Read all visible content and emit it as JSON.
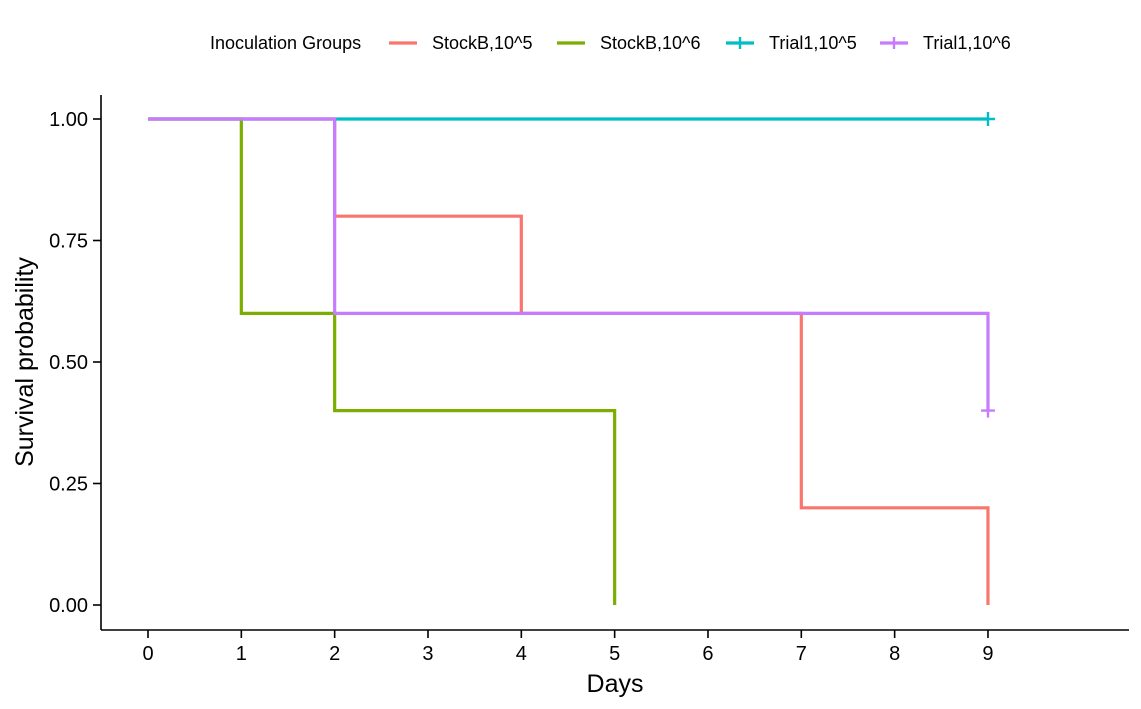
{
  "chart_data": {
    "type": "line",
    "subtype": "kaplan-meier step",
    "title": "",
    "xlabel": "Days",
    "ylabel": "Survival probability",
    "xlim": [
      -0.5,
      10.5
    ],
    "ylim": [
      -0.05,
      1.05
    ],
    "x_ticks": [
      0,
      1,
      2,
      3,
      4,
      5,
      6,
      7,
      8,
      9
    ],
    "y_ticks": [
      0,
      0.25,
      0.5,
      0.75,
      1.0
    ],
    "y_tick_labels": [
      "0.00",
      "0.25",
      "0.50",
      "0.75",
      "1.00"
    ],
    "grid": false,
    "legend": {
      "title": "Inoculation Groups",
      "position": "top"
    },
    "series": [
      {
        "name": "StockB,10^5",
        "color": "#F8766D",
        "steps": [
          [
            0,
            1.0
          ],
          [
            2,
            0.8
          ],
          [
            4,
            0.6
          ],
          [
            7,
            0.2
          ],
          [
            9,
            0.0
          ]
        ],
        "end_x": 9,
        "censored": []
      },
      {
        "name": "StockB,10^6",
        "color": "#7CAE00",
        "steps": [
          [
            0,
            1.0
          ],
          [
            1,
            0.6
          ],
          [
            2,
            0.4
          ],
          [
            5,
            0.0
          ]
        ],
        "end_x": 5,
        "censored": []
      },
      {
        "name": "Trial1,10^5",
        "color": "#00BFC4",
        "steps": [
          [
            0,
            1.0
          ]
        ],
        "end_x": 9,
        "censored": [
          [
            9,
            1.0
          ]
        ]
      },
      {
        "name": "Trial1,10^6",
        "color": "#C77CFF",
        "steps": [
          [
            0,
            1.0
          ],
          [
            2,
            0.6
          ],
          [
            9,
            0.4
          ]
        ],
        "end_x": 9,
        "censored": [
          [
            9,
            0.4
          ]
        ]
      }
    ]
  }
}
